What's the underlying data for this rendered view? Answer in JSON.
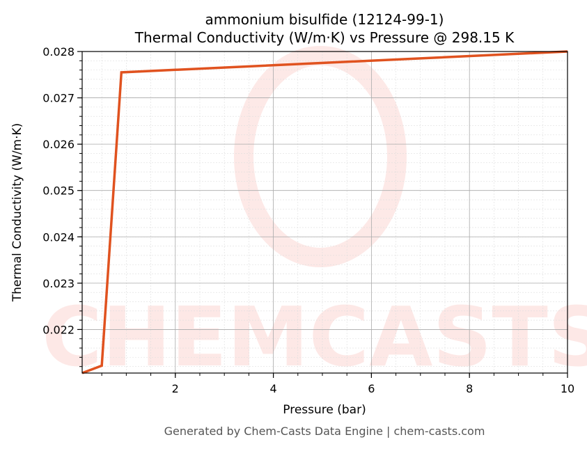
{
  "chart_data": {
    "type": "line",
    "title": "ammonium bisulfide (12124-99-1)",
    "subtitle": "Thermal Conductivity (W/m·K) vs Pressure @ 298.15 K",
    "xlabel": "Pressure (bar)",
    "ylabel": "Thermal Conductivity (W/m·K)",
    "xlim": [
      0.1,
      10
    ],
    "ylim": [
      0.02106,
      0.028
    ],
    "xticks": [
      2,
      4,
      6,
      8,
      10
    ],
    "xtick_labels": [
      "2",
      "4",
      "6",
      "8",
      "10"
    ],
    "yticks": [
      0.022,
      0.023,
      0.024,
      0.025,
      0.026,
      0.027,
      0.028
    ],
    "ytick_labels": [
      "0.022",
      "0.023",
      "0.024",
      "0.025",
      "0.026",
      "0.027",
      "0.028"
    ],
    "grid": true,
    "series": [
      {
        "x": [
          0.1,
          0.5,
          0.9,
          10
        ],
        "y": [
          0.02106,
          0.02122,
          0.02755,
          0.028
        ],
        "color": "#e0521f"
      }
    ]
  },
  "watermark": "CHEMCASTS",
  "footer": "Generated by Chem-Casts Data Engine | chem-casts.com"
}
